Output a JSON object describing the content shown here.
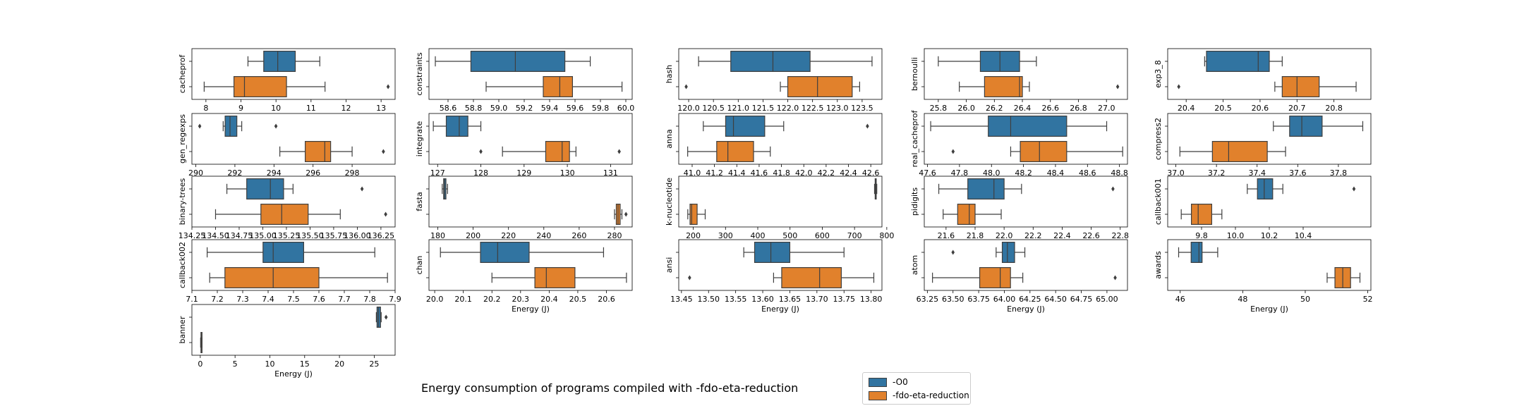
{
  "title": "Energy consumption of programs compiled with -fdo-eta-reduction",
  "legend": [
    {
      "label": "-O0",
      "color": "#1f77b4"
    },
    {
      "label": "-fdo-eta-reduction",
      "color": "#ff7f0e"
    }
  ],
  "colors": {
    "O0": "#3174a1",
    "eta": "#e1812c",
    "line": "#3f3f3f"
  },
  "chart_data": [
    {
      "type": "box",
      "name": "cacheprof",
      "xlabel": "",
      "xlim": [
        7.6,
        13.4
      ],
      "ticks": [
        8,
        9,
        10,
        11,
        12,
        13
      ],
      "series": [
        {
          "name": "-O0",
          "whislo": 9.2,
          "q1": 9.65,
          "med": 10.05,
          "q3": 10.55,
          "whishi": 11.25,
          "fliers": []
        },
        {
          "name": "-fdo-eta-reduction",
          "whislo": 7.95,
          "q1": 8.8,
          "med": 9.1,
          "q3": 10.3,
          "whishi": 11.4,
          "fliers": [
            13.2
          ]
        }
      ]
    },
    {
      "type": "box",
      "name": "constraints",
      "xlabel": "",
      "xlim": [
        58.45,
        60.05
      ],
      "ticks": [
        "58.6",
        "58.8",
        "59.0",
        "59.2",
        "59.4",
        "59.6",
        "59.8",
        "60.0"
      ],
      "series": [
        {
          "name": "-O0",
          "whislo": 58.5,
          "q1": 58.78,
          "med": 59.13,
          "q3": 59.52,
          "whishi": 59.72,
          "fliers": []
        },
        {
          "name": "-fdo-eta-reduction",
          "whislo": 58.9,
          "q1": 59.35,
          "med": 59.48,
          "q3": 59.58,
          "whishi": 59.97,
          "fliers": []
        }
      ]
    },
    {
      "type": "box",
      "name": "hash",
      "xlabel": "",
      "xlim": [
        119.8,
        123.9
      ],
      "ticks": [
        "120.0",
        "120.5",
        "121.0",
        "121.5",
        "122.0",
        "122.5",
        "123.0",
        "123.5"
      ],
      "series": [
        {
          "name": "-O0",
          "whislo": 120.2,
          "q1": 120.85,
          "med": 121.7,
          "q3": 122.45,
          "whishi": 123.7,
          "fliers": []
        },
        {
          "name": "-fdo-eta-reduction",
          "whislo": 121.85,
          "q1": 122.0,
          "med": 122.6,
          "q3": 123.3,
          "whishi": 123.45,
          "fliers": [
            119.95
          ]
        }
      ]
    },
    {
      "type": "box",
      "name": "bernoulli",
      "xlabel": "",
      "xlim": [
        25.7,
        27.15
      ],
      "ticks": [
        "25.8",
        "26.0",
        "26.2",
        "26.4",
        "26.6",
        "26.8",
        "27.0"
      ],
      "series": [
        {
          "name": "-O0",
          "whislo": 25.8,
          "q1": 26.1,
          "med": 26.24,
          "q3": 26.38,
          "whishi": 26.5,
          "fliers": []
        },
        {
          "name": "-fdo-eta-reduction",
          "whislo": 25.95,
          "q1": 26.13,
          "med": 26.38,
          "q3": 26.4,
          "whishi": 26.45,
          "fliers": [
            27.08
          ]
        }
      ]
    },
    {
      "type": "box",
      "name": "exp3_8",
      "xlabel": "",
      "xlim": [
        20.35,
        20.9
      ],
      "ticks": [
        "20.4",
        "20.5",
        "20.6",
        "20.7",
        "20.8"
      ],
      "series": [
        {
          "name": "-O0",
          "whislo": 20.45,
          "q1": 20.455,
          "med": 20.595,
          "q3": 20.625,
          "whishi": 20.66,
          "fliers": []
        },
        {
          "name": "-fdo-eta-reduction",
          "whislo": 20.64,
          "q1": 20.66,
          "med": 20.7,
          "q3": 20.76,
          "whishi": 20.86,
          "fliers": [
            20.38
          ]
        }
      ]
    },
    {
      "type": "box",
      "name": "gen_regexps",
      "xlabel": "",
      "xlim": [
        289.8,
        300.2
      ],
      "ticks": [
        "290",
        "292",
        "294",
        "296",
        "298"
      ],
      "series": [
        {
          "name": "-O0",
          "whislo": 291.4,
          "q1": 291.5,
          "med": 291.75,
          "q3": 292.1,
          "whishi": 292.35,
          "fliers": [
            290.2,
            294.1
          ]
        },
        {
          "name": "-fdo-eta-reduction",
          "whislo": 294.3,
          "q1": 295.6,
          "med": 296.6,
          "q3": 296.9,
          "whishi": 298.0,
          "fliers": [
            299.6
          ]
        }
      ]
    },
    {
      "type": "box",
      "name": "integrate",
      "xlabel": "",
      "xlim": [
        126.8,
        131.5
      ],
      "ticks": [
        "127",
        "128",
        "129",
        "130",
        "131"
      ],
      "series": [
        {
          "name": "-O0",
          "whislo": 126.9,
          "q1": 127.2,
          "med": 127.5,
          "q3": 127.7,
          "whishi": 128.0,
          "fliers": []
        },
        {
          "name": "-fdo-eta-reduction",
          "whislo": 128.5,
          "q1": 129.5,
          "med": 129.88,
          "q3": 130.05,
          "whishi": 130.2,
          "fliers": [
            128.0,
            131.2
          ]
        }
      ]
    },
    {
      "type": "box",
      "name": "anna",
      "xlabel": "",
      "xlim": [
        40.88,
        42.7
      ],
      "ticks": [
        "41.0",
        "41.2",
        "41.4",
        "41.6",
        "41.8",
        "42.0",
        "42.2",
        "42.4",
        "42.6"
      ],
      "series": [
        {
          "name": "-O0",
          "whislo": 41.1,
          "q1": 41.3,
          "med": 41.37,
          "q3": 41.65,
          "whishi": 41.82,
          "fliers": [
            42.57
          ]
        },
        {
          "name": "-fdo-eta-reduction",
          "whislo": 40.96,
          "q1": 41.22,
          "med": 41.32,
          "q3": 41.55,
          "whishi": 41.7,
          "fliers": []
        }
      ]
    },
    {
      "type": "box",
      "name": "real_cacheprof",
      "xlabel": "",
      "xlim": [
        47.58,
        48.85
      ],
      "ticks": [
        "47.6",
        "47.8",
        "48.0",
        "48.2",
        "48.4",
        "48.6",
        "48.8"
      ],
      "series": [
        {
          "name": "-O0",
          "whislo": 47.62,
          "q1": 47.98,
          "med": 48.12,
          "q3": 48.47,
          "whishi": 48.72,
          "fliers": []
        },
        {
          "name": "-fdo-eta-reduction",
          "whislo": 48.12,
          "q1": 48.18,
          "med": 48.3,
          "q3": 48.47,
          "whishi": 48.82,
          "fliers": [
            47.76
          ]
        }
      ]
    },
    {
      "type": "box",
      "name": "compress2",
      "xlabel": "",
      "xlim": [
        36.96,
        37.96
      ],
      "ticks": [
        "37.0",
        "37.2",
        "37.4",
        "37.6",
        "37.8"
      ],
      "series": [
        {
          "name": "-O0",
          "whislo": 37.48,
          "q1": 37.56,
          "med": 37.62,
          "q3": 37.72,
          "whishi": 37.92,
          "fliers": []
        },
        {
          "name": "-fdo-eta-reduction",
          "whislo": 37.02,
          "q1": 37.18,
          "med": 37.26,
          "q3": 37.45,
          "whishi": 37.54,
          "fliers": []
        }
      ]
    },
    {
      "type": "box",
      "name": "binary-trees",
      "xlabel": "",
      "xlim": [
        134.25,
        136.4
      ],
      "ticks": [
        "134.25",
        "134.50",
        "134.75",
        "135.00",
        "135.25",
        "135.50",
        "135.75",
        "136.00",
        "136.25"
      ],
      "series": [
        {
          "name": "-O0",
          "whislo": 134.62,
          "q1": 134.83,
          "med": 135.08,
          "q3": 135.22,
          "whishi": 135.32,
          "fliers": [
            136.05
          ]
        },
        {
          "name": "-fdo-eta-reduction",
          "whislo": 134.5,
          "q1": 134.98,
          "med": 135.2,
          "q3": 135.48,
          "whishi": 135.82,
          "fliers": [
            136.3
          ]
        }
      ]
    },
    {
      "type": "box",
      "name": "fasta",
      "xlabel": "",
      "xlim": [
        175,
        290
      ],
      "ticks": [
        "180",
        "200",
        "220",
        "240",
        "260",
        "280"
      ],
      "series": [
        {
          "name": "-O0",
          "whislo": 182.5,
          "q1": 183.3,
          "med": 183.8,
          "q3": 184.6,
          "whishi": 185.5,
          "fliers": []
        },
        {
          "name": "-fdo-eta-reduction",
          "whislo": 280.0,
          "q1": 281.0,
          "med": 282.0,
          "q3": 283.2,
          "whishi": 284.2,
          "fliers": [
            286.5
          ]
        }
      ]
    },
    {
      "type": "box",
      "name": "k-nucleotide",
      "xlabel": "",
      "xlim": [
        155,
        785
      ],
      "ticks": [
        "200",
        "300",
        "400",
        "500",
        "600",
        "700",
        "800"
      ],
      "series": [
        {
          "name": "-O0",
          "whislo": 762,
          "q1": 764,
          "med": 765,
          "q3": 767,
          "whishi": 769,
          "fliers": []
        },
        {
          "name": "-fdo-eta-reduction",
          "whislo": 183,
          "q1": 190,
          "med": 195,
          "q3": 212,
          "whishi": 237,
          "fliers": []
        }
      ]
    },
    {
      "type": "box",
      "name": "pidigits",
      "xlabel": "",
      "xlim": [
        21.45,
        22.85
      ],
      "ticks": [
        "21.6",
        "21.8",
        "22.0",
        "22.2",
        "22.4",
        "22.6",
        "22.8"
      ],
      "series": [
        {
          "name": "-O0",
          "whislo": 21.55,
          "q1": 21.75,
          "med": 21.93,
          "q3": 22.0,
          "whishi": 22.12,
          "fliers": [
            22.75
          ]
        },
        {
          "name": "-fdo-eta-reduction",
          "whislo": 21.58,
          "q1": 21.68,
          "med": 21.76,
          "q3": 21.8,
          "whishi": 21.98,
          "fliers": []
        }
      ]
    },
    {
      "type": "box",
      "name": "callback001",
      "xlabel": "",
      "xlim": [
        9.6,
        10.8
      ],
      "ticks": [
        "9.8",
        "10.0",
        "10.2",
        "10.4"
      ],
      "series": [
        {
          "name": "-O0",
          "whislo": 10.07,
          "q1": 10.13,
          "med": 10.17,
          "q3": 10.22,
          "whishi": 10.28,
          "fliers": [
            10.7
          ]
        },
        {
          "name": "-fdo-eta-reduction",
          "whislo": 9.68,
          "q1": 9.74,
          "med": 9.78,
          "q3": 9.86,
          "whishi": 9.92,
          "fliers": []
        }
      ]
    },
    {
      "type": "box",
      "name": "callback002",
      "xlabel": "",
      "xlim": [
        7.1,
        7.9
      ],
      "ticks": [
        "7.1",
        "7.2",
        "7.3",
        "7.4",
        "7.5",
        "7.6",
        "7.7",
        "7.8",
        "7.9"
      ],
      "series": [
        {
          "name": "-O0",
          "whislo": 7.16,
          "q1": 7.38,
          "med": 7.42,
          "q3": 7.54,
          "whishi": 7.82,
          "fliers": []
        },
        {
          "name": "-fdo-eta-reduction",
          "whislo": 7.17,
          "q1": 7.23,
          "med": 7.42,
          "q3": 7.6,
          "whishi": 7.87,
          "fliers": []
        }
      ]
    },
    {
      "type": "box",
      "name": "chan",
      "xlabel": "Energy (J)",
      "xlim": [
        19.98,
        20.69
      ],
      "ticks": [
        "20.0",
        "20.1",
        "20.2",
        "20.3",
        "20.4",
        "20.5",
        "20.6"
      ],
      "series": [
        {
          "name": "-O0",
          "whislo": 20.02,
          "q1": 20.16,
          "med": 20.22,
          "q3": 20.33,
          "whishi": 20.59,
          "fliers": []
        },
        {
          "name": "-fdo-eta-reduction",
          "whislo": 20.2,
          "q1": 20.35,
          "med": 20.39,
          "q3": 20.49,
          "whishi": 20.67,
          "fliers": []
        }
      ]
    },
    {
      "type": "box",
      "name": "ansi",
      "xlabel": "Energy (J)",
      "xlim": [
        13.445,
        13.82
      ],
      "ticks": [
        "13.45",
        "13.50",
        "13.55",
        "13.60",
        "13.65",
        "13.70",
        "13.75",
        "13.80"
      ],
      "series": [
        {
          "name": "-O0",
          "whislo": 13.565,
          "q1": 13.585,
          "med": 13.615,
          "q3": 13.65,
          "whishi": 13.75,
          "fliers": []
        },
        {
          "name": "-fdo-eta-reduction",
          "whislo": 13.62,
          "q1": 13.635,
          "med": 13.705,
          "q3": 13.745,
          "whishi": 13.805,
          "fliers": [
            13.465
          ]
        }
      ]
    },
    {
      "type": "box",
      "name": "atom",
      "xlabel": "Energy (J)",
      "xlim": [
        63.22,
        65.2
      ],
      "ticks": [
        "63.25",
        "63.50",
        "63.75",
        "64.00",
        "64.25",
        "64.50",
        "64.75",
        "65.00"
      ],
      "series": [
        {
          "name": "-O0",
          "whislo": 63.92,
          "q1": 63.98,
          "med": 64.03,
          "q3": 64.1,
          "whishi": 64.2,
          "fliers": [
            63.5
          ]
        },
        {
          "name": "-fdo-eta-reduction",
          "whislo": 63.3,
          "q1": 63.76,
          "med": 63.96,
          "q3": 64.06,
          "whishi": 64.18,
          "fliers": [
            65.08
          ]
        }
      ]
    },
    {
      "type": "box",
      "name": "awards",
      "xlabel": "Energy (J)",
      "xlim": [
        45.6,
        52.1
      ],
      "ticks": [
        "46",
        "48",
        "50",
        "52"
      ],
      "series": [
        {
          "name": "-O0",
          "whislo": 45.95,
          "q1": 46.35,
          "med": 46.6,
          "q3": 46.7,
          "whishi": 47.2,
          "fliers": []
        },
        {
          "name": "-fdo-eta-reduction",
          "whislo": 50.7,
          "q1": 50.95,
          "med": 51.2,
          "q3": 51.45,
          "whishi": 51.75,
          "fliers": []
        }
      ]
    },
    {
      "type": "box",
      "name": "banner",
      "xlabel": "Energy (J)",
      "xlim": [
        -1.2,
        28
      ],
      "ticks": [
        "0",
        "5",
        "10",
        "15",
        "20",
        "25"
      ],
      "series": [
        {
          "name": "-O0",
          "whislo": 25.3,
          "q1": 25.4,
          "med": 25.6,
          "q3": 25.9,
          "whishi": 26.0,
          "fliers": [
            26.7
          ]
        },
        {
          "name": "-fdo-eta-reduction",
          "whislo": 0.05,
          "q1": 0.1,
          "med": 0.15,
          "q3": 0.2,
          "whishi": 0.25,
          "fliers": []
        }
      ]
    }
  ]
}
